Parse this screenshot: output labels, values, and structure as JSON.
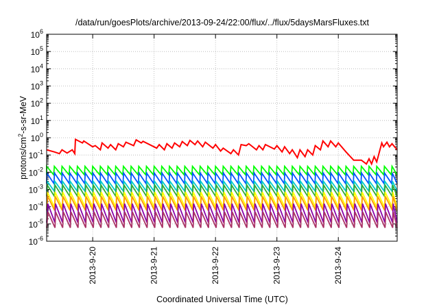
{
  "chart_data": {
    "type": "line",
    "title": "/data/run/goesPlots/archive/2013-09-24/22:00/flux/../flux/5daysMarsFluxes.txt",
    "xlabel": "Coordinated Universal Time (UTC)",
    "ylabel": {
      "prefix": "protons/cm",
      "sup": "2",
      "suffix": "-s-sr-MeV"
    },
    "yscale": "log",
    "ylim_exponents": [
      -6,
      6
    ],
    "yticks": [
      {
        "base": "10",
        "exp": "-6"
      },
      {
        "base": "10",
        "exp": "-5"
      },
      {
        "base": "10",
        "exp": "-4"
      },
      {
        "base": "10",
        "exp": "-3"
      },
      {
        "base": "10",
        "exp": "-2"
      },
      {
        "base": "10",
        "exp": "-1"
      },
      {
        "base": "10",
        "exp": "0"
      },
      {
        "base": "10",
        "exp": "1"
      },
      {
        "base": "10",
        "exp": "2"
      },
      {
        "base": "10",
        "exp": "3"
      },
      {
        "base": "10",
        "exp": "4"
      },
      {
        "base": "10",
        "exp": "5"
      },
      {
        "base": "10",
        "exp": "6"
      }
    ],
    "xlim_days": [
      "2013-09-19 06:00",
      "2013-09-24 23:00"
    ],
    "xticks": [
      "2013-9-20",
      "2013-9-21",
      "2013-9-22",
      "2013-9-23",
      "2013-9-24"
    ],
    "grid": true,
    "series": [
      {
        "color": "#ff0000",
        "sawtooth": false,
        "x": [
          "2013-09-19 06:00",
          "2013-09-19 09:00",
          "2013-09-19 11:00",
          "2013-09-19 12:00",
          "2013-09-19 14:00",
          "2013-09-19 16:00",
          "2013-09-19 17:00",
          "2013-09-19 17:15",
          "2013-09-19 20:00",
          "2013-09-19 20:30",
          "2013-09-20 00:00",
          "2013-09-20 01:00",
          "2013-09-20 03:00",
          "2013-09-20 03:40",
          "2013-09-20 06:00",
          "2013-09-20 07:00",
          "2013-09-20 09:00",
          "2013-09-20 10:00",
          "2013-09-20 12:00",
          "2013-09-20 13:00",
          "2013-09-20 16:00",
          "2013-09-20 17:00",
          "2013-09-20 19:00",
          "2013-09-20 19:40",
          "2013-09-21 01:00",
          "2013-09-21 02:00",
          "2013-09-21 04:00",
          "2013-09-21 05:00",
          "2013-09-21 07:00",
          "2013-09-21 08:00",
          "2013-09-21 10:00",
          "2013-09-21 11:00",
          "2013-09-21 13:00",
          "2013-09-21 14:00",
          "2013-09-21 16:00",
          "2013-09-21 17:00",
          "2013-09-21 19:00",
          "2013-09-21 20:00",
          "2013-09-21 23:00",
          "2013-09-22 00:00",
          "2013-09-22 02:00",
          "2013-09-22 03:00",
          "2013-09-22 06:00",
          "2013-09-22 07:00",
          "2013-09-22 09:00",
          "2013-09-22 10:00",
          "2013-09-22 12:00",
          "2013-09-22 13:00",
          "2013-09-22 16:00",
          "2013-09-22 17:00",
          "2013-09-22 18:30",
          "2013-09-22 19:30",
          "2013-09-22 23:00",
          "2013-09-23 00:00",
          "2013-09-23 02:00",
          "2013-09-23 03:00",
          "2013-09-23 05:00",
          "2013-09-23 06:00",
          "2013-09-23 08:00",
          "2013-09-23 09:00",
          "2013-09-23 11:00",
          "2013-09-23 12:00",
          "2013-09-23 14:00",
          "2013-09-23 15:00",
          "2013-09-23 17:00",
          "2013-09-23 18:00",
          "2013-09-23 20:00",
          "2013-09-23 21:00",
          "2013-09-23 23:00",
          "2013-09-24 00:00",
          "2013-09-24 03:00",
          "2013-09-24 06:00",
          "2013-09-24 09:00",
          "2013-09-24 11:00",
          "2013-09-24 12:00",
          "2013-09-24 13:00",
          "2013-09-24 14:00",
          "2013-09-24 15:00",
          "2013-09-24 17:00",
          "2013-09-24 17:40",
          "2013-09-24 19:00",
          "2013-09-24 20:00",
          "2013-09-24 21:00",
          "2013-09-24 23:00"
        ],
        "y": [
          0.2,
          0.15,
          0.12,
          0.2,
          0.13,
          0.2,
          0.12,
          0.8,
          0.5,
          0.65,
          0.3,
          0.35,
          0.2,
          0.5,
          0.25,
          0.4,
          0.2,
          0.45,
          0.3,
          0.55,
          0.35,
          0.75,
          0.5,
          0.62,
          0.25,
          0.4,
          0.2,
          0.45,
          0.25,
          0.5,
          0.3,
          0.6,
          0.35,
          0.7,
          0.4,
          0.65,
          0.3,
          0.55,
          0.25,
          0.4,
          0.17,
          0.25,
          0.12,
          0.2,
          0.1,
          0.4,
          0.35,
          0.45,
          0.2,
          0.35,
          0.2,
          0.4,
          0.22,
          0.35,
          0.15,
          0.3,
          0.12,
          0.2,
          0.07,
          0.2,
          0.08,
          0.2,
          0.1,
          0.35,
          0.2,
          0.65,
          0.3,
          0.65,
          0.3,
          0.5,
          0.15,
          0.05,
          0.05,
          0.03,
          0.06,
          0.03,
          0.08,
          0.04,
          0.5,
          0.3,
          0.55,
          0.3,
          0.45,
          0.2
        ]
      },
      {
        "color": "#00ff00",
        "sawtooth": true,
        "high": 0.022,
        "low": 0.007,
        "phase": 0.0
      },
      {
        "color": "#0055ff",
        "sawtooth": true,
        "high": 0.009,
        "low": 0.0022,
        "phase": 0.03
      },
      {
        "color": "#00cccc",
        "sawtooth": true,
        "high": 0.003,
        "low": 0.0008,
        "phase": 0.06
      },
      {
        "color": "#33aa33",
        "sawtooth": true,
        "high": 0.0018,
        "low": 0.0004,
        "phase": 0.09
      },
      {
        "color": "#ffff00",
        "sawtooth": true,
        "high": 0.0007,
        "low": 9e-05,
        "phase": 0.11
      },
      {
        "color": "#ff9900",
        "sawtooth": true,
        "high": 0.0004,
        "low": 6e-05,
        "phase": 0.13
      },
      {
        "color": "#8800aa",
        "sawtooth": true,
        "high": 0.00015,
        "low": 1.2e-05,
        "phase": 0.15
      },
      {
        "color": "#aa3366",
        "sawtooth": true,
        "high": 5e-05,
        "low": 6e-06,
        "phase": 0.17
      }
    ]
  }
}
